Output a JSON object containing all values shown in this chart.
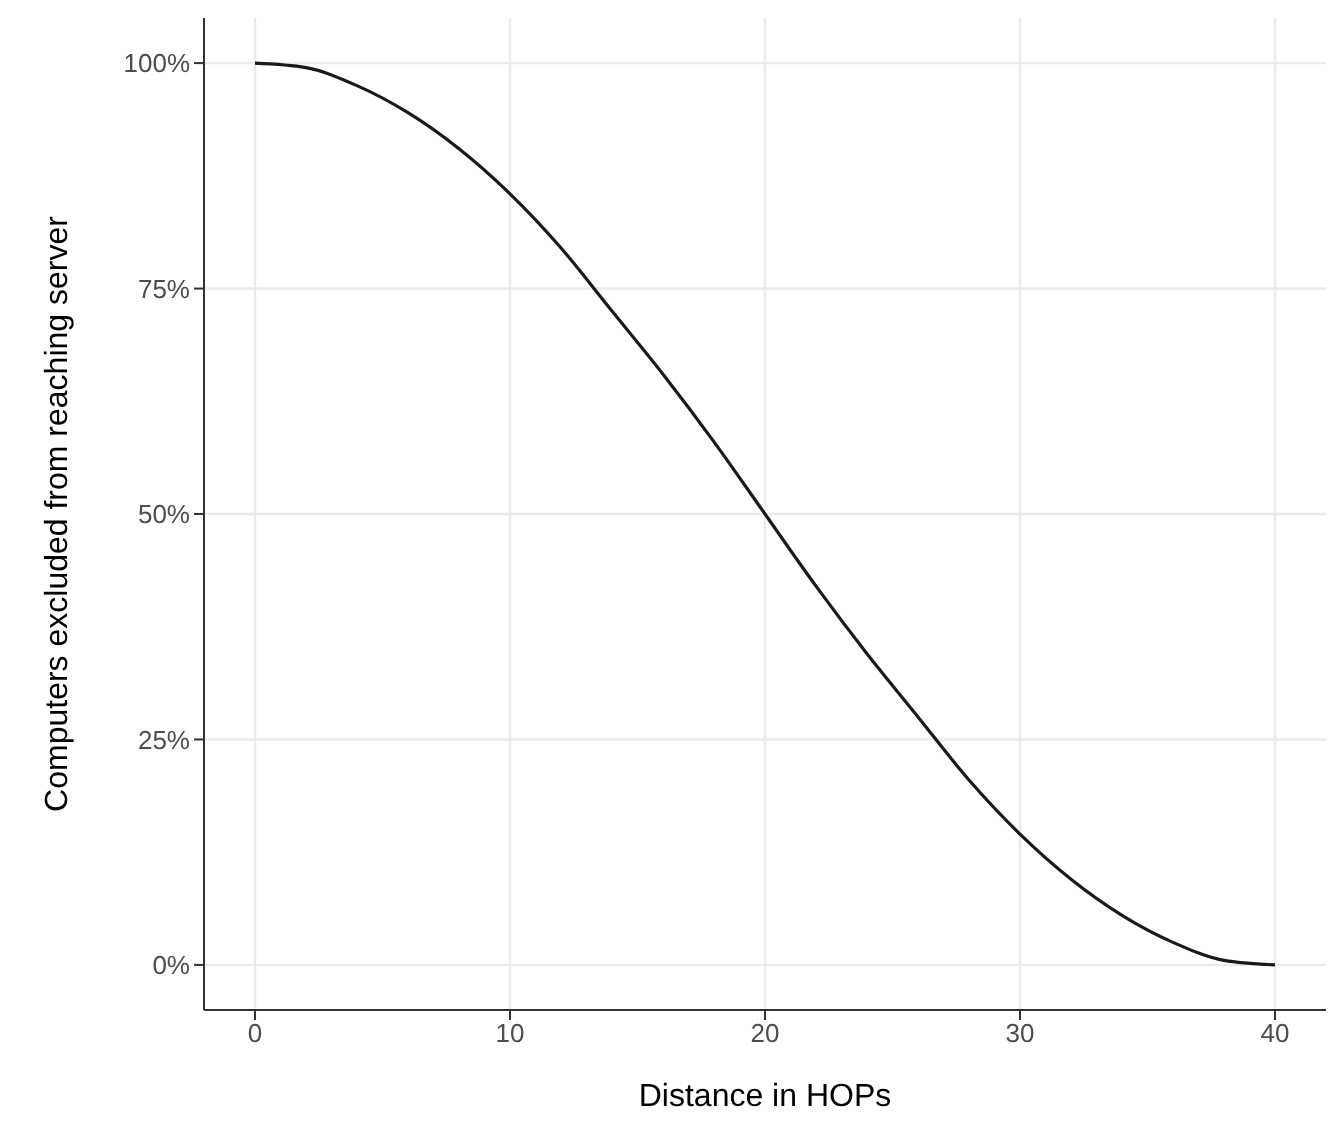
{
  "chart_data": {
    "type": "line",
    "xlabel": "Distance in HOPs",
    "ylabel": "Computers excluded from reaching server",
    "x": [
      0,
      2,
      4,
      6,
      8,
      10,
      12,
      14,
      16,
      18,
      20,
      22,
      24,
      26,
      28,
      30,
      32,
      34,
      36,
      38,
      40
    ],
    "series": [
      {
        "color": "#1a1a1a",
        "values": [
          100,
          99.5,
          97.5,
          94.5,
          90.5,
          85.5,
          79.5,
          72.5,
          65.5,
          58,
          50,
          42,
          34.5,
          27.5,
          20.5,
          14.5,
          9.5,
          5.5,
          2.5,
          0.5,
          0
        ]
      }
    ],
    "xlim": [
      -2,
      42
    ],
    "xticks": [
      0,
      10,
      20,
      30,
      40
    ],
    "ylim": [
      -5,
      105
    ],
    "yticks": [
      {
        "value": 0,
        "label": "0%"
      },
      {
        "value": 25,
        "label": "25%"
      },
      {
        "value": 50,
        "label": "50%"
      },
      {
        "value": 75,
        "label": "75%"
      },
      {
        "value": 100,
        "label": "100%"
      }
    ],
    "grid": true,
    "marker": "none",
    "line_style": "solid"
  }
}
